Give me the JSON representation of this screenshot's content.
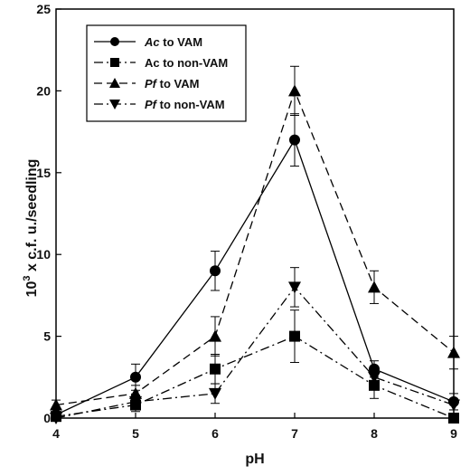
{
  "chart_data": {
    "type": "line",
    "xlabel": "pH",
    "ylabel_main": "10",
    "ylabel_sup": "3",
    "ylabel_rest": " x c.f. u./seedling",
    "xlim": [
      4,
      9
    ],
    "ylim": [
      0,
      25
    ],
    "x_ticks": [
      "4",
      "5",
      "6",
      "7",
      "8",
      "9"
    ],
    "y_ticks": [
      "0",
      "5",
      "10",
      "15",
      "20",
      "25"
    ],
    "grid": false,
    "legend_position": "top-left",
    "x": [
      4,
      5,
      6,
      7,
      8,
      9
    ],
    "series": [
      {
        "key": "ac_vam",
        "name_italic": "Ac",
        "name_rest": " to VAM",
        "marker": "circle",
        "line_style": "solid",
        "color": "#000000",
        "values": [
          0.2,
          2.5,
          9.0,
          17.0,
          3.0,
          1.0
        ],
        "errors": [
          0.3,
          0.8,
          1.2,
          1.6,
          0.5,
          0.5
        ]
      },
      {
        "key": "ac_nonvam",
        "name_italic": "",
        "name_rest": "Ac to non-VAM",
        "marker": "square",
        "line_style": "dashdot",
        "color": "#000000",
        "values": [
          0.1,
          0.8,
          3.0,
          5.0,
          2.0,
          0.0
        ],
        "errors": [
          0.2,
          0.4,
          0.9,
          1.6,
          0.8,
          0.1
        ]
      },
      {
        "key": "pf_vam",
        "name_italic": "Pf",
        "name_rest": " to VAM",
        "marker": "triangle-up",
        "line_style": "dashed",
        "color": "#000000",
        "values": [
          0.8,
          1.5,
          5.0,
          20.0,
          8.0,
          4.0
        ],
        "errors": [
          0.3,
          0.5,
          1.2,
          1.5,
          1.0,
          1.0
        ]
      },
      {
        "key": "pf_nonvam",
        "name_italic": "Pf",
        "name_rest": " to non-VAM",
        "marker": "triangle-down",
        "line_style": "dashdot",
        "color": "#000000",
        "values": [
          0.0,
          1.0,
          1.5,
          8.0,
          2.5,
          0.8
        ],
        "errors": [
          0.2,
          0.4,
          0.6,
          1.2,
          0.6,
          0.3
        ]
      }
    ]
  }
}
